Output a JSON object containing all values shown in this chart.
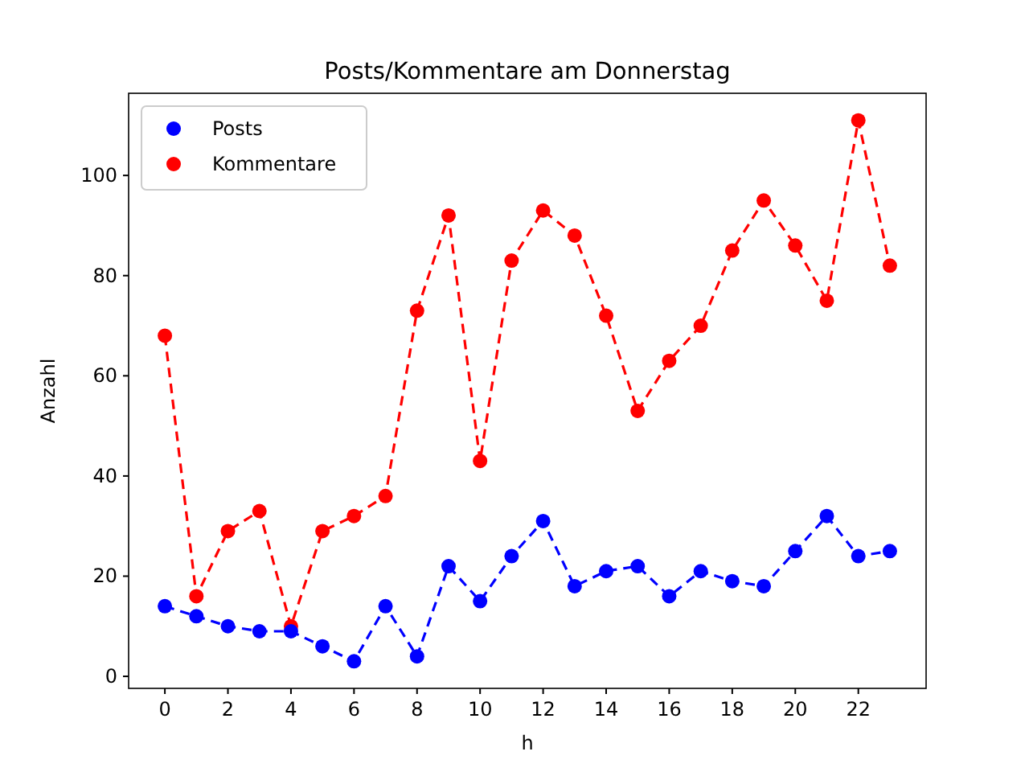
{
  "chart_data": {
    "type": "line",
    "title": "Posts/Kommentare am Donnerstag",
    "xlabel": "h",
    "ylabel": "Anzahl",
    "x": [
      0,
      1,
      2,
      3,
      4,
      5,
      6,
      7,
      8,
      9,
      10,
      11,
      12,
      13,
      14,
      15,
      16,
      17,
      18,
      19,
      20,
      21,
      22,
      23
    ],
    "series": [
      {
        "name": "Posts",
        "color": "#0000ff",
        "values": [
          14,
          12,
          10,
          9,
          9,
          6,
          3,
          14,
          4,
          22,
          15,
          24,
          31,
          18,
          21,
          22,
          16,
          21,
          19,
          18,
          25,
          32,
          24,
          25
        ]
      },
      {
        "name": "Kommentare",
        "color": "#ff0000",
        "values": [
          68,
          16,
          29,
          33,
          10,
          29,
          32,
          36,
          73,
          92,
          43,
          83,
          93,
          88,
          72,
          53,
          63,
          70,
          85,
          95,
          86,
          75,
          111,
          82
        ]
      }
    ],
    "xlim": [
      -1.15,
      24.15
    ],
    "ylim": [
      -2.4,
      116.4
    ],
    "xticks": [
      0,
      2,
      4,
      6,
      8,
      10,
      12,
      14,
      16,
      18,
      20,
      22
    ],
    "yticks": [
      0,
      20,
      40,
      60,
      80,
      100
    ],
    "grid": false,
    "legend": "top left",
    "marker": "circle",
    "line_style": "dashed"
  }
}
